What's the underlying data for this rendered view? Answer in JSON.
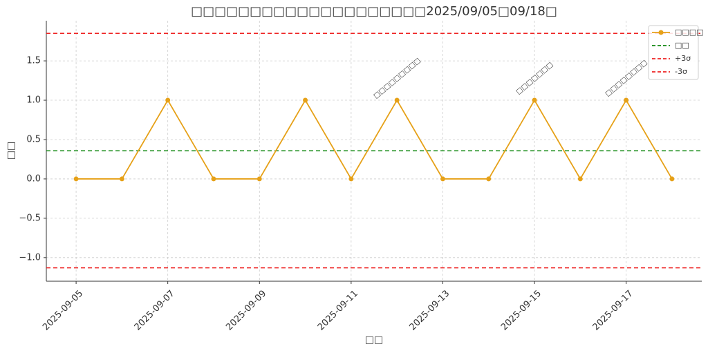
{
  "chart_data": {
    "type": "line",
    "title": "□□□□□□□□□□□□□□□□□□□□2025/09/05□09/18□",
    "x_label": "□□",
    "y_label": "□□",
    "x": [
      "2025-09-05",
      "2025-09-06",
      "2025-09-07",
      "2025-09-08",
      "2025-09-09",
      "2025-09-10",
      "2025-09-11",
      "2025-09-12",
      "2025-09-13",
      "2025-09-14",
      "2025-09-15",
      "2025-09-16",
      "2025-09-17",
      "2025-09-18"
    ],
    "series": [
      {
        "name": "□□□□",
        "color": "#e6a118",
        "values": [
          0,
          0,
          1,
          0,
          0,
          1,
          0,
          1,
          0,
          0,
          1,
          0,
          1,
          0
        ]
      }
    ],
    "hlines": [
      {
        "name": "□□",
        "value": 0.357,
        "color": "#118811"
      },
      {
        "name": "+3σ",
        "value": 1.85,
        "color": "#ee2222"
      },
      {
        "name": "-3σ",
        "value": -1.13,
        "color": "#ee2222"
      }
    ],
    "annotations": [
      {
        "text": "□□□□□□□□□",
        "x": "2025-09-12"
      },
      {
        "text": "□□□□□□□",
        "x": "2025-09-15"
      },
      {
        "text": "□□□□□□□□",
        "x": "2025-09-17"
      }
    ],
    "xticks": [
      "2025-09-05",
      "2025-09-07",
      "2025-09-09",
      "2025-09-11",
      "2025-09-13",
      "2025-09-15",
      "2025-09-17"
    ],
    "ylim": [
      -1.3,
      2.01
    ],
    "yticks": [
      {
        "value": -1.0,
        "label": "−1.0"
      },
      {
        "value": -0.5,
        "label": "−0.5"
      },
      {
        "value": 0,
        "label": "0.0"
      },
      {
        "value": 0.5,
        "label": "0.5"
      },
      {
        "value": 1,
        "label": "1.0"
      },
      {
        "value": 1.5,
        "label": "1.5"
      }
    ],
    "grid": true,
    "legend": "upper right"
  }
}
